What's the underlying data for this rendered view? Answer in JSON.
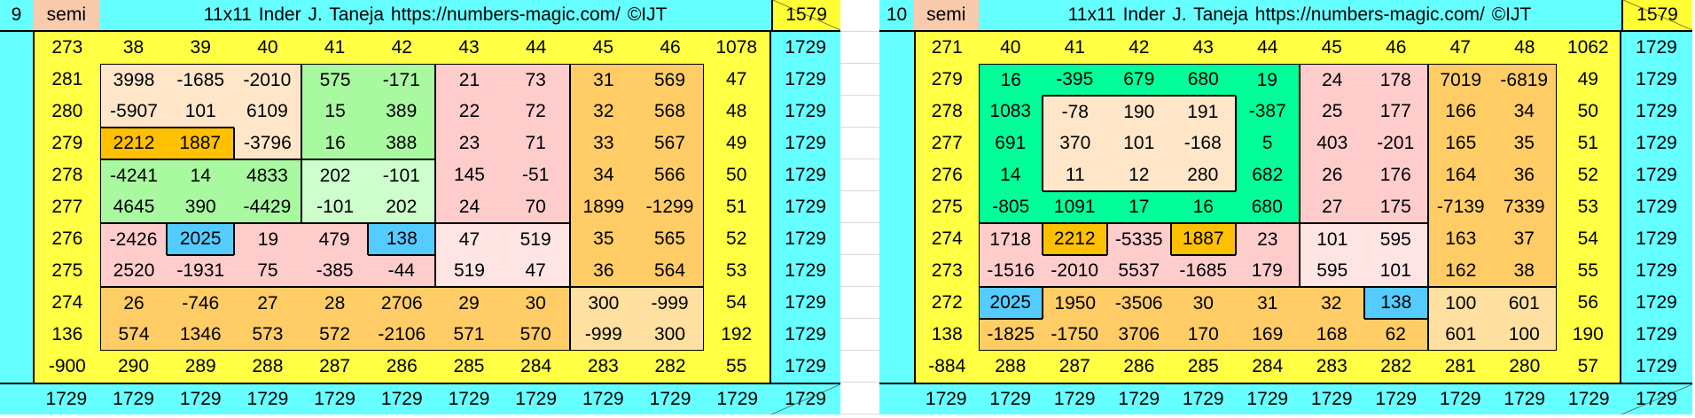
{
  "palette": {
    "Y": "#FFFF44",
    "P": "#FFE6C9",
    "G": "#A8F9A0",
    "L": "#CCFFCC",
    "K": "#FFCCCC",
    "I": "#FFE4E4",
    "O": "#FFCC66",
    "A": "#FFE0A0",
    "D": "#FFC000",
    "B": "#55CCFF",
    "S": "#00FF99",
    "cyan": "#66FFFF",
    "semi": "#F8CBAD"
  },
  "panels": [
    {
      "number": "9",
      "semi_label": "semi",
      "title": "11x11 Inder J. Taneja   https://numbers-magic.com/   ©IJT",
      "corner": "1579",
      "rows": [
        [
          "273",
          "38",
          "39",
          "40",
          "41",
          "42",
          "43",
          "44",
          "45",
          "46",
          "1078",
          "1729"
        ],
        [
          "281",
          "3998",
          "-1685",
          "-2010",
          "575",
          "-171",
          "21",
          "73",
          "31",
          "569",
          "47",
          "1729"
        ],
        [
          "280",
          "-5907",
          "101",
          "6109",
          "15",
          "389",
          "22",
          "72",
          "32",
          "568",
          "48",
          "1729"
        ],
        [
          "279",
          "2212",
          "1887",
          "-3796",
          "16",
          "388",
          "23",
          "71",
          "33",
          "567",
          "49",
          "1729"
        ],
        [
          "278",
          "-4241",
          "14",
          "4833",
          "202",
          "-101",
          "145",
          "-51",
          "34",
          "566",
          "50",
          "1729"
        ],
        [
          "277",
          "4645",
          "390",
          "-4429",
          "-101",
          "202",
          "24",
          "70",
          "1899",
          "-1299",
          "51",
          "1729"
        ],
        [
          "276",
          "-2426",
          "2025",
          "19",
          "479",
          "138",
          "47",
          "519",
          "35",
          "565",
          "52",
          "1729"
        ],
        [
          "275",
          "2520",
          "-1931",
          "75",
          "-385",
          "-44",
          "519",
          "47",
          "36",
          "564",
          "53",
          "1729"
        ],
        [
          "274",
          "26",
          "-746",
          "27",
          "28",
          "2706",
          "29",
          "30",
          "300",
          "-999",
          "54",
          "1729"
        ],
        [
          "136",
          "574",
          "1346",
          "573",
          "572",
          "-2106",
          "571",
          "570",
          "-999",
          "300",
          "192",
          "1729"
        ],
        [
          "-900",
          "290",
          "289",
          "288",
          "287",
          "286",
          "285",
          "284",
          "283",
          "282",
          "55",
          "1729"
        ]
      ],
      "bottom": [
        "1729",
        "1729",
        "1729",
        "1729",
        "1729",
        "1729",
        "1729",
        "1729",
        "1729",
        "1729",
        "1729",
        "1729"
      ],
      "colors": [
        "YYYYYYYYYYY",
        "YPPPGGKKOOY",
        "YPPPGGKKOOY",
        "YDDPGGKKOOY",
        "YGGGLLKKOOY",
        "YGGGLLKKOOY",
        "YKBKKBIIOOY",
        "YKKKKKIIOOY",
        "YOOOOOOOAAY",
        "YOOOOOOOAAY",
        "YYYYYYYYYYY"
      ]
    },
    {
      "number": "10",
      "semi_label": "semi",
      "title": "11x11 Inder J. Taneja   https://numbers-magic.com/   ©IJT",
      "corner": "1579",
      "rows": [
        [
          "271",
          "40",
          "41",
          "42",
          "43",
          "44",
          "45",
          "46",
          "47",
          "48",
          "1062",
          "1729"
        ],
        [
          "279",
          "16",
          "-395",
          "679",
          "680",
          "19",
          "24",
          "178",
          "7019",
          "-6819",
          "49",
          "1729"
        ],
        [
          "278",
          "1083",
          "-78",
          "190",
          "191",
          "-387",
          "25",
          "177",
          "166",
          "34",
          "50",
          "1729"
        ],
        [
          "277",
          "691",
          "370",
          "101",
          "-168",
          "5",
          "403",
          "-201",
          "165",
          "35",
          "51",
          "1729"
        ],
        [
          "276",
          "14",
          "11",
          "12",
          "280",
          "682",
          "26",
          "176",
          "164",
          "36",
          "52",
          "1729"
        ],
        [
          "275",
          "-805",
          "1091",
          "17",
          "16",
          "680",
          "27",
          "175",
          "-7139",
          "7339",
          "53",
          "1729"
        ],
        [
          "274",
          "1718",
          "2212",
          "-5335",
          "1887",
          "23",
          "101",
          "595",
          "163",
          "37",
          "54",
          "1729"
        ],
        [
          "273",
          "-1516",
          "-2010",
          "5537",
          "-1685",
          "179",
          "595",
          "101",
          "162",
          "38",
          "55",
          "1729"
        ],
        [
          "272",
          "2025",
          "1950",
          "-3506",
          "30",
          "31",
          "32",
          "138",
          "100",
          "601",
          "56",
          "1729"
        ],
        [
          "138",
          "-1825",
          "-1750",
          "3706",
          "170",
          "169",
          "168",
          "62",
          "601",
          "100",
          "190",
          "1729"
        ],
        [
          "-884",
          "288",
          "287",
          "286",
          "285",
          "284",
          "283",
          "282",
          "281",
          "280",
          "57",
          "1729"
        ]
      ],
      "bottom": [
        "1729",
        "1729",
        "1729",
        "1729",
        "1729",
        "1729",
        "1729",
        "1729",
        "1729",
        "1729",
        "1729",
        "1729"
      ],
      "colors": [
        "YYYYYYYYYYY",
        "YSSSSSKKOOY",
        "YSPPPSKKOOY",
        "YSPPPSKKOOY",
        "YSPPPSKKOOY",
        "YSSSSSKKOOY",
        "YKDKDKIIOOY",
        "YKKKKKIIOOY",
        "YBOOOOOBAAY",
        "YOOOOOOOAAY",
        "YYYYYYYYYYY"
      ]
    }
  ]
}
